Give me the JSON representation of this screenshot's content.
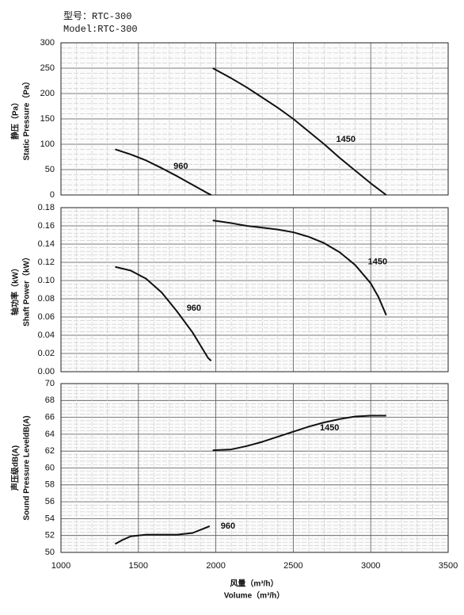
{
  "header": {
    "model_cn": "型号：RTC-300",
    "model_en": "Model:RTC-300"
  },
  "x_label_cn": "风量（m³/h）",
  "x_label_en": "Volume（m³/h）",
  "chart_data": [
    {
      "type": "line",
      "y_label_cn": "静压（Pa）",
      "y_label_en": "Static Pressure（Pa）",
      "xlim": [
        1000,
        3500
      ],
      "xticks": [
        1000,
        1500,
        2000,
        2500,
        3000,
        3500
      ],
      "ylim": [
        0,
        300
      ],
      "yticks": [
        0,
        50,
        100,
        150,
        200,
        250,
        300
      ],
      "grid": true,
      "series": [
        {
          "name": "960",
          "color": "#111111",
          "x": [
            1350,
            1450,
            1550,
            1650,
            1750,
            1850,
            1950,
            1970
          ],
          "values": [
            90,
            80,
            68,
            53,
            37,
            20,
            3,
            0
          ]
        },
        {
          "name": "1450",
          "color": "#111111",
          "x": [
            1980,
            2100,
            2200,
            2300,
            2400,
            2500,
            2600,
            2700,
            2800,
            2900,
            3000,
            3100
          ],
          "values": [
            250,
            230,
            212,
            192,
            172,
            150,
            125,
            100,
            73,
            48,
            23,
            0
          ]
        }
      ]
    },
    {
      "type": "line",
      "y_label_cn": "轴功率（kW）",
      "y_label_en": "Shaft Power（kW）",
      "xlim": [
        1000,
        3500
      ],
      "xticks": [
        1000,
        1500,
        2000,
        2500,
        3000,
        3500
      ],
      "ylim": [
        0,
        0.18
      ],
      "yticks": [
        {
          "value": 0,
          "label": "0.00"
        },
        0.02,
        0.04,
        0.06,
        0.08,
        {
          "value": 0.1,
          "label": "0.10"
        },
        0.12,
        0.14,
        0.16,
        0.18
      ],
      "grid": true,
      "series": [
        {
          "name": "960",
          "color": "#111111",
          "x": [
            1350,
            1450,
            1550,
            1650,
            1750,
            1850,
            1950,
            1970
          ],
          "values": [
            0.115,
            0.111,
            0.102,
            0.087,
            0.066,
            0.043,
            0.015,
            0.012
          ]
        },
        {
          "name": "1450",
          "color": "#111111",
          "x": [
            1980,
            2100,
            2200,
            2300,
            2400,
            2500,
            2600,
            2700,
            2800,
            2900,
            3000,
            3050,
            3100
          ],
          "values": [
            0.166,
            0.163,
            0.16,
            0.158,
            0.156,
            0.153,
            0.148,
            0.141,
            0.131,
            0.117,
            0.097,
            0.082,
            0.062
          ]
        }
      ]
    },
    {
      "type": "line",
      "y_label_cn": "声压级dB(A)",
      "y_label_en": "Sound Pressure LeveldB(A)",
      "xlim": [
        1000,
        3500
      ],
      "xticks": [
        1000,
        1500,
        2000,
        2500,
        3000,
        3500
      ],
      "ylim": [
        50,
        70
      ],
      "yticks": [
        50,
        52,
        54,
        56,
        58,
        60,
        62,
        64,
        66,
        68,
        70
      ],
      "grid": true,
      "series": [
        {
          "name": "960",
          "color": "#111111",
          "x": [
            1350,
            1400,
            1450,
            1550,
            1650,
            1750,
            1850,
            1960
          ],
          "values": [
            51.0,
            51.5,
            51.9,
            52.1,
            52.1,
            52.1,
            52.3,
            53.1
          ]
        },
        {
          "name": "1450",
          "color": "#111111",
          "x": [
            1980,
            2100,
            2200,
            2300,
            2400,
            2500,
            2600,
            2700,
            2800,
            2900,
            3000,
            3100
          ],
          "values": [
            62.1,
            62.2,
            62.6,
            63.1,
            63.7,
            64.3,
            64.9,
            65.4,
            65.8,
            66.1,
            66.2,
            66.2
          ]
        }
      ]
    }
  ]
}
